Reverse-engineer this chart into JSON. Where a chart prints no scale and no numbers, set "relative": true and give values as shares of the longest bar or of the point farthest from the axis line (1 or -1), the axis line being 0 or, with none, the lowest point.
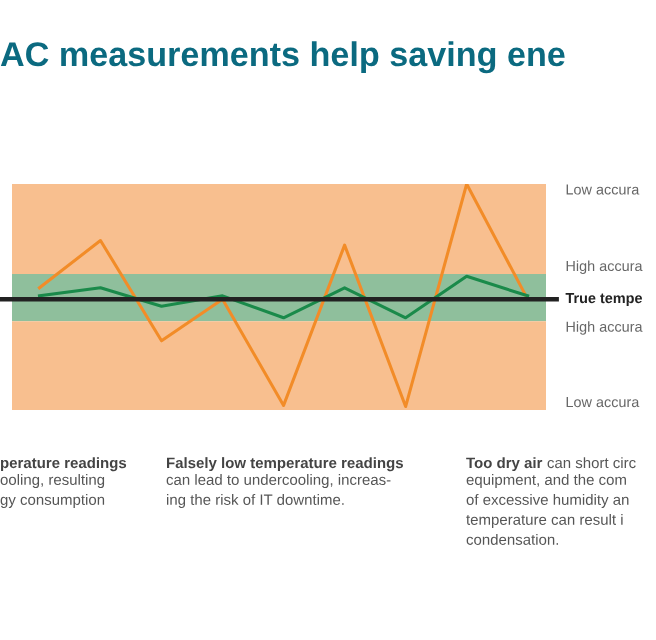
{
  "chart_data": {
    "type": "line",
    "title": "AC measurements help saving ene",
    "relative": true,
    "marker": "none",
    "line_style": "solid",
    "categories": [
      null,
      null,
      null,
      null,
      null,
      null,
      null,
      null,
      null
    ],
    "series": [
      {
        "color": "#f28c28",
        "values": [
          0.1,
          0.51,
          -0.36,
          0,
          -0.92,
          0.47,
          -0.93,
          1,
          0
        ]
      },
      {
        "color": "#1a8a4a",
        "values": [
          0.03,
          0.1,
          -0.06,
          0.03,
          -0.16,
          0.1,
          -0.16,
          0.2,
          0.03
        ]
      }
    ],
    "ref_lines": [
      {
        "axis": "y",
        "value": 0,
        "label": "True tempe",
        "color": "#222222",
        "line_style": "solid"
      }
    ],
    "bands": [
      {
        "axis": "y",
        "from": 0.22,
        "to": 1,
        "label": "Low accura",
        "color": "#f8bf8f"
      },
      {
        "axis": "y",
        "from": 0,
        "to": 0.22,
        "label": "High accura",
        "color": "#8fbf9c"
      },
      {
        "axis": "y",
        "from": -0.19,
        "to": 0,
        "label": "High accura",
        "color": "#8fbf9c"
      },
      {
        "axis": "y",
        "from": -0.96,
        "to": -0.19,
        "label": "Low accura",
        "color": "#f8bf8f"
      }
    ],
    "annotations": [
      "perature readings",
      "ooling, resulting\ngy consumption",
      "Falsely low temperature readings",
      "can lead to undercooling, increas-\ning the risk of IT downtime.",
      "Too dry air",
      "can short circ",
      "equipment, and the com\nof excessive humidity an\ntemperature can result i\ncondensation."
    ]
  }
}
